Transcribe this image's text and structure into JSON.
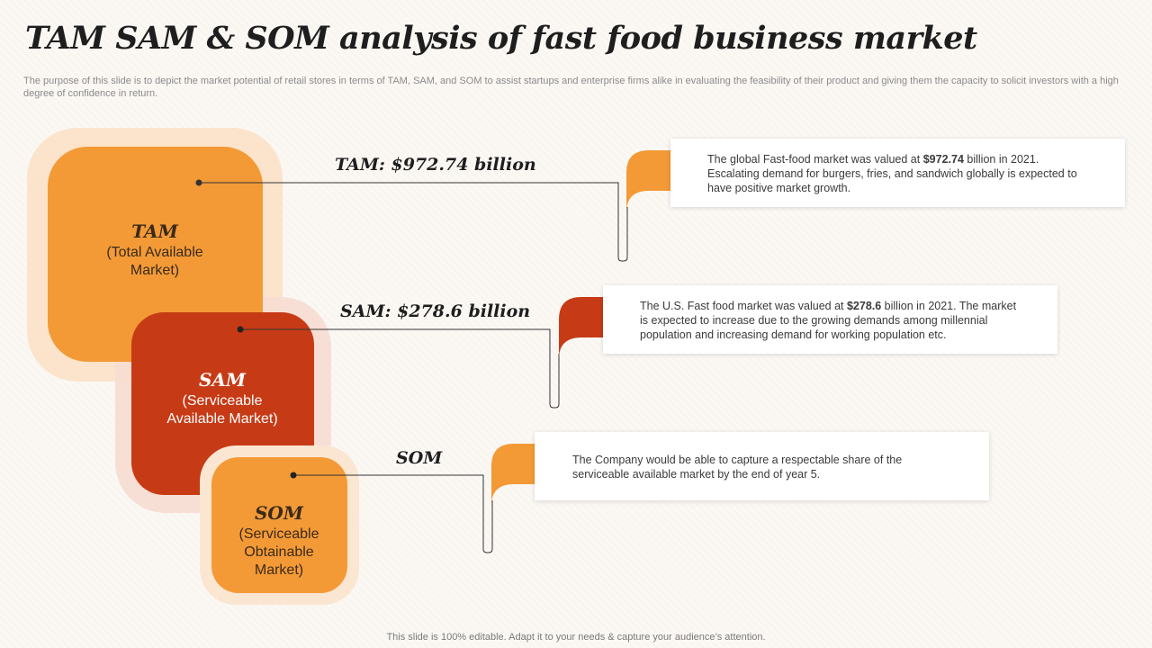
{
  "title": "TAM SAM & SOM analysis of fast food business market",
  "subtitle": "The purpose of this slide is to depict the market potential of retail stores in terms of TAM,  SAM,  and SOM  to assist startups and enterprise firms alike in evaluating the feasibility of their product and giving them the capacity to solicit investors with a high degree of confidence in return.",
  "footer": "This slide is 100% editable. Adapt it to your needs & capture your audience’s attention.",
  "colors": {
    "tam": "#f39a37",
    "sam": "#c63b16",
    "som": "#f39a37",
    "halo_tam": "#fbe4cb",
    "halo_sam": "#f7dbd1",
    "halo_som": "#fbe6d2",
    "connector": "#333333"
  },
  "tam": {
    "abbr": "TAM",
    "name_line1": "(Total Available",
    "name_line2": "Market)",
    "value": "TAM: $972.74 billion",
    "desc_before": "The global Fast-food  market was valued  at ",
    "desc_bold": "$972.74",
    "desc_after": " billion in 2021. Escalating demand for burgers, fries, and sandwich globally is expected to have  positive  market growth."
  },
  "sam": {
    "abbr": "SAM",
    "name_line1": "(Serviceable",
    "name_line2": "Available Market)",
    "value": "SAM: $278.6 billion",
    "desc_before": "The U.S. Fast food  market was valued  at ",
    "desc_bold": "$278.6",
    "desc_after": " billion in 2021. The market is expected to increase due to the growing demands among millennial population  and increasing demand for working population etc."
  },
  "som": {
    "abbr": "SOM",
    "name_line1": "(Serviceable",
    "name_line2": "Obtainable",
    "name_line3": "Market)",
    "value": "SOM",
    "desc": "The Company  would be able to capture  a respectable share of the serviceable  available  market by the end of year 5."
  }
}
